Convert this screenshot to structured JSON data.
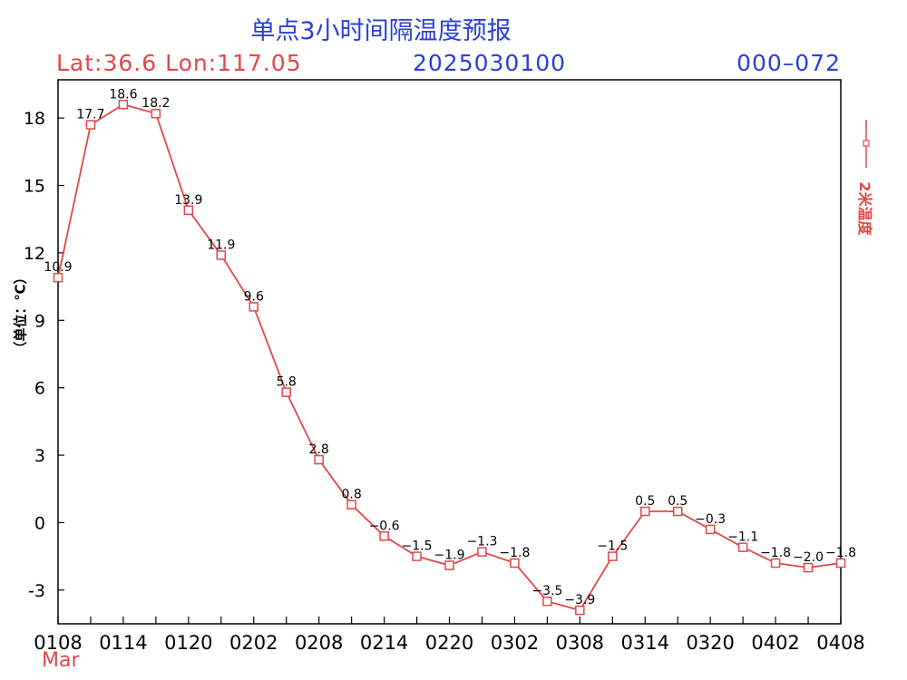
{
  "header": {
    "title": "单点3小时间隔温度预报",
    "latlon": "Lat:36.6  Lon:117.05",
    "init_time": "2025030100",
    "forecast_range": "000–072"
  },
  "colors": {
    "series": "#e04848",
    "title_blue": "#2a3fd6",
    "axis": "#000000"
  },
  "chart_data": {
    "type": "line",
    "title": "单点3小时间隔温度预报",
    "ylabel": "（单位：℃）",
    "xlabel_month": "Mar",
    "ylim": [
      -4.5,
      19.7
    ],
    "yticks": [
      -3,
      0,
      3,
      6,
      9,
      12,
      15,
      18
    ],
    "xticks": [
      "0108",
      "0114",
      "0120",
      "0202",
      "0208",
      "0214",
      "0220",
      "0302",
      "0308",
      "0314",
      "0320",
      "0402",
      "0408"
    ],
    "grid": false,
    "legend_placement": "right",
    "series": [
      {
        "name": "2米温度",
        "marker": "square",
        "values": [
          10.9,
          17.7,
          18.6,
          18.2,
          13.9,
          11.9,
          9.6,
          5.8,
          2.8,
          0.8,
          -0.6,
          -1.5,
          -1.9,
          -1.3,
          -1.8,
          -3.5,
          -3.9,
          -1.5,
          0.5,
          0.5,
          -0.3,
          -1.1,
          -1.8,
          -2.0,
          -1.8
        ],
        "labels": [
          "10.9",
          "17.7",
          "18.6",
          "18.2",
          "13.9",
          "11.9",
          "9.6",
          "5.8",
          "2.8",
          "0.8",
          "−0.6",
          "−1.5",
          "−1.9",
          "−1.3",
          "−1.8",
          "−3.5",
          "−3.9",
          "−1.5",
          "0.5",
          "0.5",
          "−0.3",
          "−1.1",
          "−1.8",
          "−2.0",
          "−1.8"
        ]
      }
    ]
  }
}
